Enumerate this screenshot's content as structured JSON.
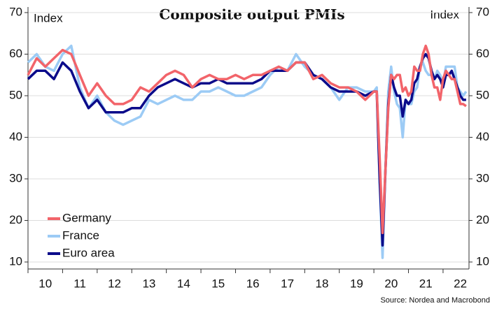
{
  "chart_data": {
    "type": "line",
    "title": "Composite output PMIs",
    "ylabel": "Index",
    "y2label": "Index",
    "source": "Source: Nordea and Macrobond",
    "x": [
      2010.0,
      2010.25,
      2010.5,
      2010.75,
      2011.0,
      2011.25,
      2011.5,
      2011.75,
      2012.0,
      2012.25,
      2012.5,
      2012.75,
      2013.0,
      2013.25,
      2013.5,
      2013.75,
      2014.0,
      2014.25,
      2014.5,
      2014.75,
      2015.0,
      2015.25,
      2015.5,
      2015.75,
      2016.0,
      2016.25,
      2016.5,
      2016.75,
      2017.0,
      2017.25,
      2017.5,
      2017.75,
      2018.0,
      2018.25,
      2018.5,
      2018.75,
      2019.0,
      2019.25,
      2019.5,
      2019.75,
      2020.0,
      2020.083,
      2020.167,
      2020.25,
      2020.333,
      2020.417,
      2020.5,
      2020.583,
      2020.667,
      2020.75,
      2020.833,
      2020.917,
      2021.0,
      2021.083,
      2021.167,
      2021.25,
      2021.333,
      2021.417,
      2021.5,
      2021.583,
      2021.667,
      2021.75,
      2021.833,
      2021.917,
      2022.0,
      2022.083,
      2022.167,
      2022.25,
      2022.333,
      2022.417,
      2022.5,
      2022.583,
      2022.667
    ],
    "series": [
      {
        "name": "Germany",
        "color": "#f2646a",
        "values": [
          55,
          59,
          57,
          59,
          61,
          60,
          55,
          50,
          53,
          50,
          48,
          48,
          49,
          52,
          51,
          53,
          55,
          56,
          55,
          52,
          54,
          55,
          54,
          54,
          55,
          54,
          55,
          55,
          56,
          57,
          56,
          58,
          58,
          54,
          55,
          53,
          52,
          52,
          51,
          49,
          51,
          51,
          35,
          17,
          32,
          47,
          55,
          54,
          55,
          55,
          51,
          52,
          50,
          51,
          57,
          56,
          56,
          60,
          62,
          60,
          55,
          52,
          52,
          49,
          54,
          56,
          55,
          54,
          54,
          51,
          48,
          48,
          47.5
        ]
      },
      {
        "name": "France",
        "color": "#9ccbf5",
        "values": [
          58,
          60,
          57,
          56,
          60,
          62,
          52,
          47,
          50,
          46,
          44,
          43,
          44,
          45,
          49,
          48,
          49,
          50,
          49,
          49,
          51,
          51,
          52,
          51,
          50,
          50,
          51,
          52,
          55,
          57,
          56,
          60,
          57,
          55,
          54,
          52,
          49,
          52,
          52,
          51,
          51,
          52,
          29,
          11,
          32,
          51,
          57,
          51,
          48,
          47,
          40,
          49,
          48,
          48,
          51,
          52,
          57,
          58,
          56,
          55,
          55,
          54,
          56,
          55,
          53,
          57,
          57,
          57,
          57,
          52,
          51,
          50,
          51
        ]
      },
      {
        "name": "Euro area",
        "color": "#0b0b8a",
        "values": [
          54,
          56,
          56,
          54,
          58,
          56,
          51,
          47,
          49,
          46,
          46,
          46,
          47,
          47,
          50,
          52,
          53,
          54,
          53,
          52,
          53,
          53,
          54,
          53,
          53,
          53,
          53,
          54,
          56,
          56,
          56,
          58,
          58,
          55,
          54,
          52,
          51,
          51,
          51,
          50,
          51,
          51,
          30,
          14,
          32,
          48,
          55,
          52,
          50,
          50,
          45,
          49,
          48,
          49,
          53,
          54,
          57,
          59,
          60,
          59,
          56,
          54,
          55,
          54,
          52,
          55,
          55,
          56,
          54,
          52,
          50,
          49,
          49
        ]
      }
    ],
    "xlim": [
      2010,
      2022.75
    ],
    "xticks": [
      {
        "value": 2010.5,
        "label": "10"
      },
      {
        "value": 2011.5,
        "label": "11"
      },
      {
        "value": 2012.5,
        "label": "12"
      },
      {
        "value": 2013.5,
        "label": "13"
      },
      {
        "value": 2014.5,
        "label": "14"
      },
      {
        "value": 2015.5,
        "label": "15"
      },
      {
        "value": 2016.5,
        "label": "16"
      },
      {
        "value": 2017.5,
        "label": "17"
      },
      {
        "value": 2018.5,
        "label": "18"
      },
      {
        "value": 2019.5,
        "label": "19"
      },
      {
        "value": 2020.5,
        "label": "20"
      },
      {
        "value": 2021.5,
        "label": "21"
      },
      {
        "value": 2022.5,
        "label": "22"
      }
    ],
    "xminor_ticks": [
      2010,
      2011,
      2012,
      2013,
      2014,
      2015,
      2016,
      2017,
      2018,
      2019,
      2020,
      2021,
      2022
    ],
    "ylim": [
      10,
      70
    ],
    "yticks": [
      10,
      20,
      30,
      40,
      50,
      60,
      70
    ],
    "y2lim": [
      10,
      70
    ],
    "y2ticks": [
      10,
      20,
      30,
      40,
      50,
      60,
      70
    ],
    "grid": true,
    "legend": "lower left"
  }
}
